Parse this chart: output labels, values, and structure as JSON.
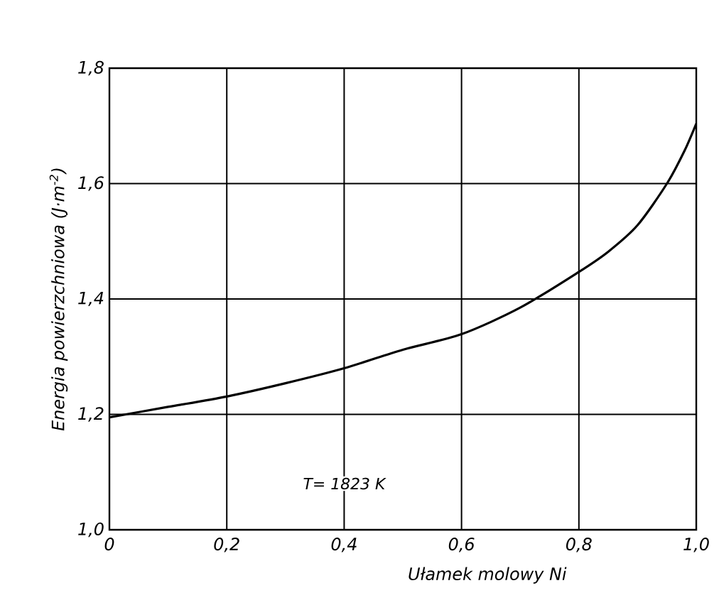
{
  "chart_data": {
    "type": "line",
    "xlabel": "Ułamek molowy Ni",
    "ylabel": "Energia powierzchniowa (J·m$^{-2}$)",
    "annotations": [
      "T= 1823 K"
    ],
    "x": [
      0,
      0.1,
      0.2,
      0.3,
      0.4,
      0.5,
      0.6,
      0.7,
      0.8,
      0.85,
      0.9,
      0.95,
      0.98,
      1.0
    ],
    "series": [
      {
        "color": "#000000",
        "values": [
          1.195,
          1.213,
          1.231,
          1.254,
          1.28,
          1.312,
          1.339,
          1.385,
          1.447,
          1.482,
          1.528,
          1.6,
          1.657,
          1.704
        ]
      }
    ],
    "xlim": [
      0,
      1.0
    ],
    "ylim": [
      1.0,
      1.8
    ],
    "xticks": [
      0,
      {
        "value": 0.2,
        "label": "0,2"
      },
      {
        "value": 0.4,
        "label": "0,4"
      },
      {
        "value": 0.6,
        "label": "0,6"
      },
      {
        "value": 0.8,
        "label": "0,8"
      },
      {
        "value": 1.0,
        "label": "1,0"
      }
    ],
    "yticks": [
      {
        "value": 1.0,
        "label": "1,0"
      },
      {
        "value": 1.2,
        "label": "1,2"
      },
      {
        "value": 1.4,
        "label": "1,4"
      },
      {
        "value": 1.6,
        "label": "1,6"
      },
      {
        "value": 1.8,
        "label": "1,8"
      }
    ],
    "grid": true,
    "legend": false,
    "marker": "none",
    "line_style": "solid"
  }
}
